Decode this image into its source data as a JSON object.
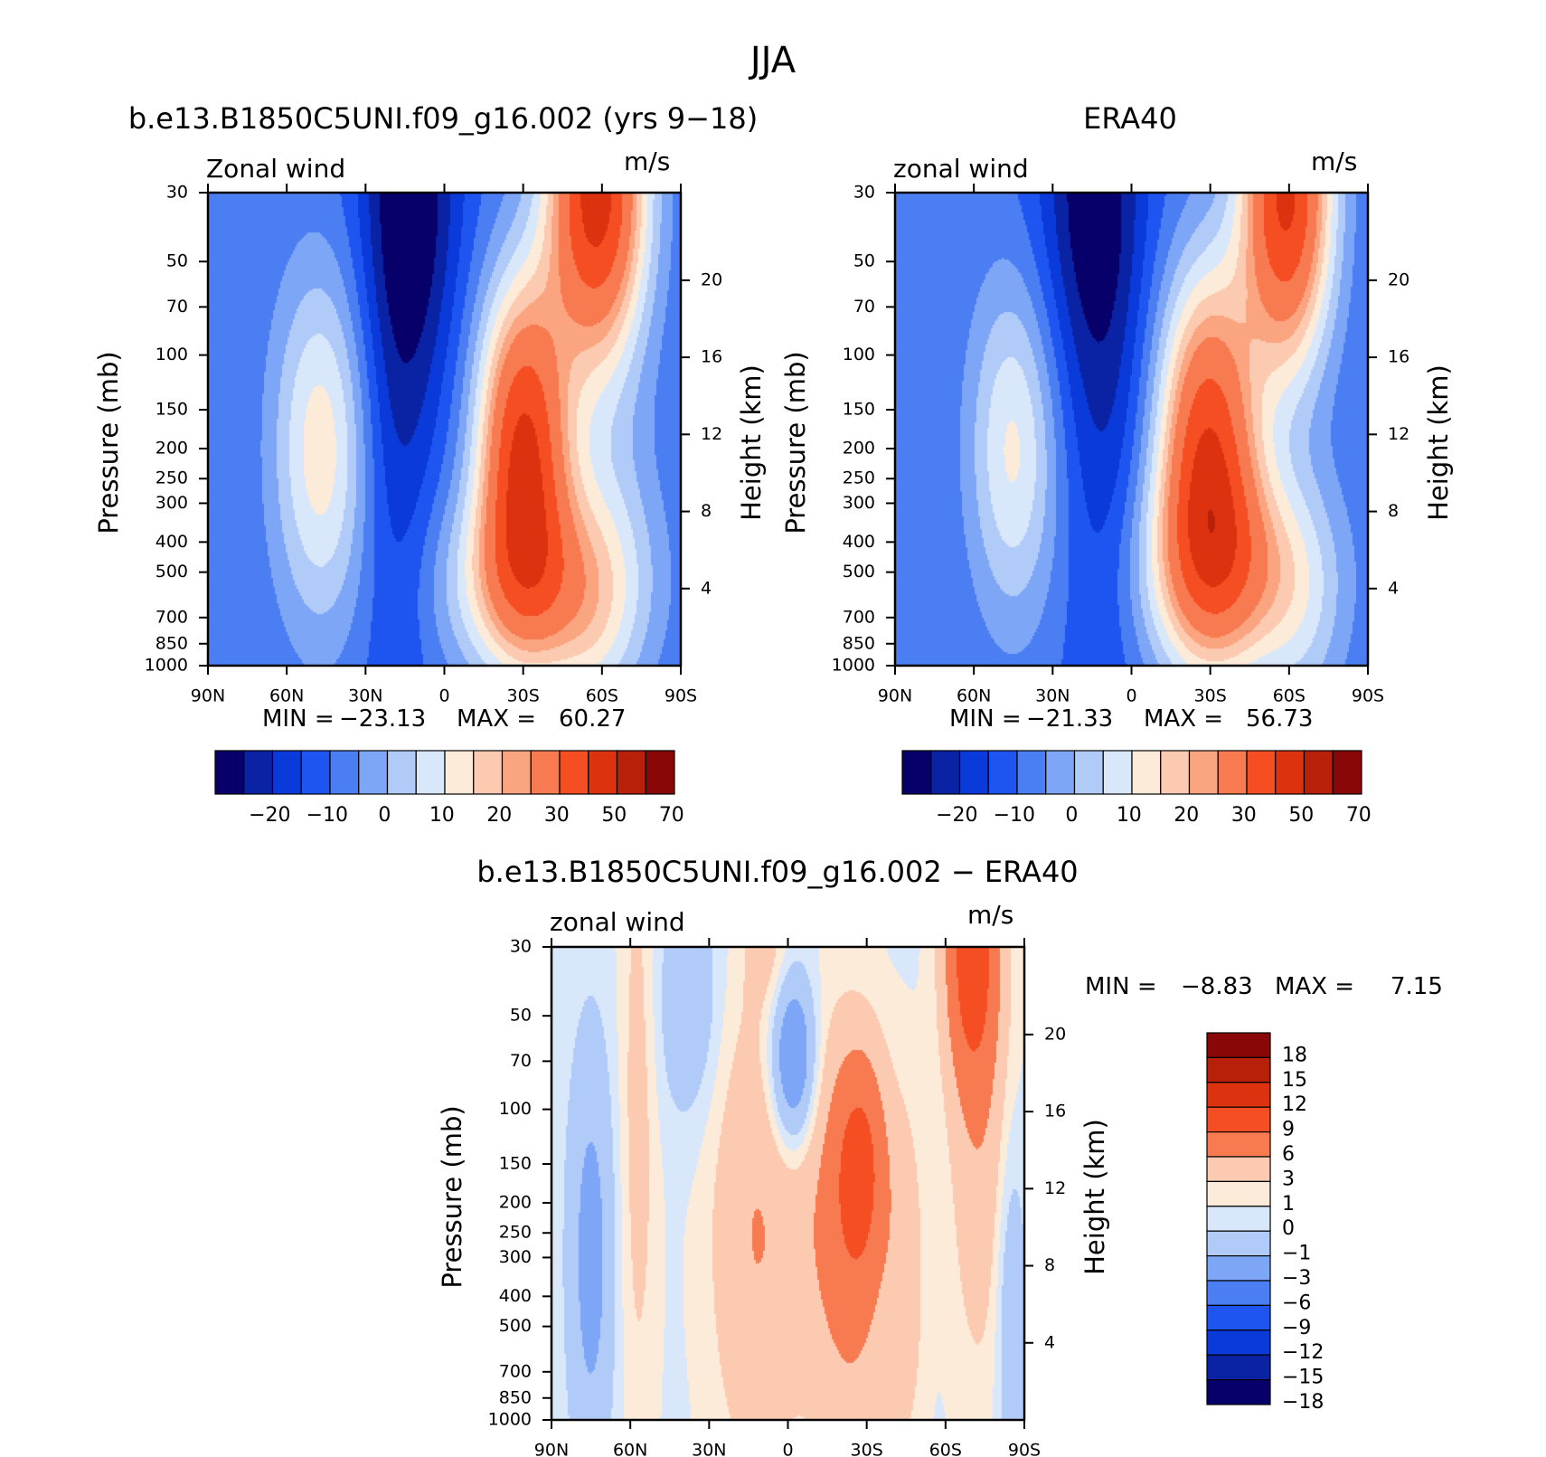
{
  "figure": {
    "title": "JJA",
    "panels": [
      {
        "title": "b.e13.B1850C5UNI.f09_g16.002 (yrs 9−18)",
        "left_label": "Zonal wind",
        "right_label": "m/s",
        "y_label": "Pressure (mb)",
        "y2_label": "Height (km)",
        "min_label": "MIN =",
        "min_value": "−23.13",
        "max_label": "MAX =",
        "max_value": "60.27"
      },
      {
        "title": "ERA40",
        "left_label": "zonal wind",
        "right_label": "m/s",
        "y_label": "Pressure (mb)",
        "y2_label": "Height (km)",
        "min_label": "MIN =",
        "min_value": "−21.33",
        "max_label": "MAX =",
        "max_value": "56.73"
      },
      {
        "title": "b.e13.B1850C5UNI.f09_g16.002 − ERA40",
        "left_label": "zonal wind",
        "right_label": "m/s",
        "y_label": "Pressure (mb)",
        "y2_label": "Height (km)",
        "min_label": "MIN =",
        "min_value": "−8.83",
        "max_label": "MAX =",
        "max_value": "7.15"
      }
    ]
  },
  "chart_data": [
    {
      "type": "heatmap",
      "subtype": "filled-contour",
      "title": "b.e13.B1850C5UNI.f09_g16.002 (yrs 9−18)",
      "variable": "Zonal wind",
      "units": "m/s",
      "xlabel": "",
      "ylabel": "Pressure (mb)",
      "y2label": "Height (km)",
      "x_ticks": [
        "90N",
        "60N",
        "30N",
        "0",
        "30S",
        "60S",
        "90S"
      ],
      "y_ticks": [
        30,
        50,
        70,
        100,
        150,
        200,
        250,
        300,
        400,
        500,
        700,
        850,
        1000
      ],
      "y2_ticks": [
        4,
        8,
        12,
        16,
        20
      ],
      "y_scale": "log",
      "ylim": [
        1000,
        30
      ],
      "xlim": [
        90,
        -90
      ],
      "colorbar_ticks": [
        "−20",
        "−10",
        "0",
        "10",
        "20",
        "30",
        "50",
        "70"
      ],
      "colorbar_colors": [
        "#08006a",
        "#0a22a4",
        "#0a3ad9",
        "#1e55f0",
        "#4a7ef2",
        "#7ea6f7",
        "#b1cbf9",
        "#d9e7fb",
        "#fcebd9",
        "#fccab0",
        "#fba480",
        "#f87a50",
        "#f44e22",
        "#dd320f",
        "#b9200a",
        "#8a0707"
      ],
      "contour_levels": [
        -25,
        -20,
        -15,
        -10,
        -5,
        0,
        5,
        10,
        15,
        20,
        25,
        30,
        40,
        50,
        60,
        70,
        80
      ],
      "features": [
        {
          "lat": 47,
          "p": 200,
          "value": 18
        },
        {
          "lat": 13,
          "p": 30,
          "value": -25
        },
        {
          "lat": -30,
          "p": 200,
          "value": 50
        },
        {
          "lat": -58,
          "p": 30,
          "value": 55
        }
      ],
      "min": -23.13,
      "max": 60.27
    },
    {
      "type": "heatmap",
      "subtype": "filled-contour",
      "title": "ERA40",
      "variable": "zonal wind",
      "units": "m/s",
      "xlabel": "",
      "ylabel": "Pressure (mb)",
      "y2label": "Height (km)",
      "x_ticks": [
        "90N",
        "60N",
        "30N",
        "0",
        "30S",
        "60S",
        "90S"
      ],
      "y_ticks": [
        30,
        50,
        70,
        100,
        150,
        200,
        250,
        300,
        400,
        500,
        700,
        850,
        1000
      ],
      "y2_ticks": [
        4,
        8,
        12,
        16,
        20
      ],
      "y_scale": "log",
      "ylim": [
        1000,
        30
      ],
      "xlim": [
        90,
        -90
      ],
      "colorbar_ticks": [
        "−20",
        "−10",
        "0",
        "10",
        "20",
        "30",
        "50",
        "70"
      ],
      "colorbar_colors": [
        "#08006a",
        "#0a22a4",
        "#0a3ad9",
        "#1e55f0",
        "#4a7ef2",
        "#7ea6f7",
        "#b1cbf9",
        "#d9e7fb",
        "#fcebd9",
        "#fccab0",
        "#fba480",
        "#f87a50",
        "#f44e22",
        "#dd320f",
        "#b9200a",
        "#8a0707"
      ],
      "contour_levels": [
        -25,
        -20,
        -15,
        -10,
        -5,
        0,
        5,
        10,
        15,
        20,
        25,
        30,
        40,
        50,
        60,
        70,
        80
      ],
      "features": [
        {
          "lat": 45,
          "p": 200,
          "value": 16
        },
        {
          "lat": 15,
          "p": 30,
          "value": -23
        },
        {
          "lat": -29,
          "p": 200,
          "value": 46
        },
        {
          "lat": -59,
          "p": 30,
          "value": 52
        }
      ],
      "min": -21.33,
      "max": 56.73
    },
    {
      "type": "heatmap",
      "subtype": "filled-contour",
      "title": "b.e13.B1850C5UNI.f09_g16.002 − ERA40",
      "variable": "zonal wind",
      "units": "m/s",
      "xlabel": "",
      "ylabel": "Pressure (mb)",
      "y2label": "Height (km)",
      "x_ticks": [
        "90N",
        "60N",
        "30N",
        "0",
        "30S",
        "60S",
        "90S"
      ],
      "y_ticks": [
        30,
        50,
        70,
        100,
        150,
        200,
        250,
        300,
        400,
        500,
        700,
        850,
        1000
      ],
      "y2_ticks": [
        4,
        8,
        12,
        16,
        20
      ],
      "y_scale": "log",
      "ylim": [
        1000,
        30
      ],
      "xlim": [
        90,
        -90
      ],
      "colorbar_ticks": [
        "18",
        "15",
        "12",
        "9",
        "6",
        "3",
        "1",
        "0",
        "−1",
        "−3",
        "−6",
        "−9",
        "−12",
        "−15",
        "−18"
      ],
      "colorbar_colors": [
        "#8a0707",
        "#b9200a",
        "#dd320f",
        "#f44e22",
        "#f87a50",
        "#fccab0",
        "#fcebd9",
        "#d9e7fb",
        "#b1cbf9",
        "#7ea6f7",
        "#4a7ef2",
        "#1e55f0",
        "#0a3ad9",
        "#0a22a4",
        "#08006a"
      ],
      "contour_levels": [
        -21,
        -18,
        -15,
        -12,
        -9,
        -6,
        -3,
        -1,
        0,
        1,
        3,
        6,
        9,
        12,
        15,
        18,
        21
      ],
      "features": [
        {
          "lat": -70,
          "p": 30,
          "value": 7
        },
        {
          "lat": -28,
          "p": 150,
          "value": 5
        },
        {
          "lat": 10,
          "p": 200,
          "value": 3
        },
        {
          "lat": -2,
          "p": 70,
          "value": -6
        },
        {
          "lat": 75,
          "p": 300,
          "value": -3
        }
      ],
      "min": -8.83,
      "max": 7.15
    }
  ]
}
